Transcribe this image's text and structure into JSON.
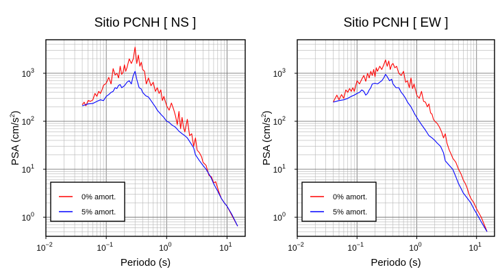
{
  "chart_data": [
    {
      "type": "line",
      "title": "Sitio PCNH [ NS ]",
      "xlabel": "Periodo (s)",
      "ylabel": "PSA (cm/s",
      "ylabel_exponent": "2",
      "ylabel_close": ")",
      "xscale": "log",
      "yscale": "log",
      "xlim": [
        0.01,
        20
      ],
      "ylim": [
        0.4,
        5000
      ],
      "x_ticks": [
        {
          "base": "10",
          "exp": "−2"
        },
        {
          "base": "10",
          "exp": "−1"
        },
        {
          "base": "10",
          "exp": "0"
        },
        {
          "base": "10",
          "exp": "1"
        }
      ],
      "y_ticks": [
        {
          "base": "10",
          "exp": "0"
        },
        {
          "base": "10",
          "exp": "1"
        },
        {
          "base": "10",
          "exp": "2"
        },
        {
          "base": "10",
          "exp": "3"
        }
      ],
      "grid": true,
      "legend_position": "bottom-left",
      "series": [
        {
          "name": "0% amort.",
          "color": "#ff0000",
          "x": [
            0.04,
            0.043,
            0.046,
            0.05,
            0.055,
            0.06,
            0.065,
            0.07,
            0.075,
            0.08,
            0.085,
            0.09,
            0.1,
            0.11,
            0.12,
            0.13,
            0.14,
            0.15,
            0.16,
            0.17,
            0.18,
            0.19,
            0.2,
            0.21,
            0.22,
            0.24,
            0.26,
            0.28,
            0.3,
            0.32,
            0.34,
            0.36,
            0.38,
            0.4,
            0.43,
            0.46,
            0.5,
            0.55,
            0.6,
            0.65,
            0.7,
            0.75,
            0.8,
            0.85,
            0.9,
            1.0,
            1.1,
            1.2,
            1.3,
            1.4,
            1.5,
            1.6,
            1.7,
            1.8,
            1.9,
            2.0,
            2.2,
            2.4,
            2.6,
            2.8,
            3.0,
            3.2,
            3.5,
            3.8,
            4.0,
            4.5,
            5.0,
            5.5,
            6.0,
            6.5,
            7.0,
            7.5,
            8.0,
            9.0,
            10.0,
            12.0,
            15.0
          ],
          "y": [
            220,
            250,
            210,
            270,
            260,
            280,
            380,
            330,
            420,
            380,
            450,
            560,
            620,
            820,
            600,
            1250,
            920,
            1000,
            800,
            1400,
            950,
            1050,
            1500,
            1100,
            1300,
            2000,
            1600,
            2000,
            3500,
            1600,
            2400,
            1400,
            1700,
            1200,
            1100,
            600,
            800,
            550,
            650,
            420,
            500,
            380,
            450,
            270,
            330,
            210,
            170,
            240,
            180,
            130,
            85,
            160,
            70,
            120,
            75,
            60,
            110,
            50,
            55,
            30,
            45,
            25,
            22,
            18,
            14,
            12,
            7.5,
            7,
            5.2,
            5.5,
            4,
            3.1,
            2.5,
            2,
            1.7,
            1.1,
            0.65
          ]
        },
        {
          "name": "5% amort.",
          "color": "#0000ff",
          "x": [
            0.04,
            0.045,
            0.05,
            0.06,
            0.07,
            0.08,
            0.09,
            0.1,
            0.11,
            0.12,
            0.13,
            0.14,
            0.15,
            0.16,
            0.17,
            0.18,
            0.2,
            0.22,
            0.24,
            0.26,
            0.28,
            0.3,
            0.32,
            0.35,
            0.38,
            0.4,
            0.45,
            0.5,
            0.55,
            0.6,
            0.65,
            0.7,
            0.8,
            0.9,
            1.0,
            1.1,
            1.2,
            1.4,
            1.6,
            1.8,
            2.0,
            2.2,
            2.5,
            2.8,
            3.0,
            3.5,
            4.0,
            4.5,
            5.0,
            5.5,
            6.0,
            7.0,
            8.0,
            9.0,
            10.0,
            12.0,
            15.0
          ],
          "y": [
            210,
            220,
            230,
            235,
            260,
            280,
            270,
            330,
            360,
            400,
            420,
            500,
            480,
            560,
            580,
            500,
            550,
            650,
            700,
            600,
            900,
            1100,
            750,
            500,
            470,
            400,
            340,
            320,
            270,
            230,
            200,
            170,
            140,
            120,
            100,
            95,
            85,
            75,
            62,
            55,
            50,
            45,
            35,
            28,
            20,
            15,
            12,
            10,
            8,
            6.5,
            5,
            3.5,
            2.5,
            2,
            1.7,
            1.15,
            0.65
          ]
        }
      ]
    },
    {
      "type": "line",
      "title": "Sitio PCNH [ EW ]",
      "xlabel": "Periodo (s)",
      "ylabel": "PSA (cm/s",
      "ylabel_exponent": "2",
      "ylabel_close": ")",
      "xscale": "log",
      "yscale": "log",
      "xlim": [
        0.01,
        20
      ],
      "ylim": [
        0.4,
        5000
      ],
      "x_ticks": [
        {
          "base": "10",
          "exp": "−2"
        },
        {
          "base": "10",
          "exp": "−1"
        },
        {
          "base": "10",
          "exp": "0"
        },
        {
          "base": "10",
          "exp": "1"
        }
      ],
      "y_ticks": [
        {
          "base": "10",
          "exp": "0"
        },
        {
          "base": "10",
          "exp": "1"
        },
        {
          "base": "10",
          "exp": "2"
        },
        {
          "base": "10",
          "exp": "3"
        }
      ],
      "grid": true,
      "legend_position": "bottom-left",
      "series": [
        {
          "name": "0% amort.",
          "color": "#ff0000",
          "x": [
            0.04,
            0.043,
            0.046,
            0.05,
            0.055,
            0.06,
            0.065,
            0.07,
            0.075,
            0.08,
            0.085,
            0.09,
            0.1,
            0.11,
            0.12,
            0.13,
            0.14,
            0.15,
            0.16,
            0.17,
            0.18,
            0.19,
            0.2,
            0.21,
            0.22,
            0.24,
            0.26,
            0.28,
            0.3,
            0.32,
            0.34,
            0.36,
            0.38,
            0.4,
            0.43,
            0.46,
            0.5,
            0.55,
            0.6,
            0.65,
            0.7,
            0.75,
            0.8,
            0.85,
            0.9,
            1.0,
            1.1,
            1.2,
            1.3,
            1.4,
            1.5,
            1.6,
            1.7,
            1.8,
            1.9,
            2.0,
            2.2,
            2.4,
            2.6,
            2.8,
            3.0,
            3.2,
            3.5,
            3.8,
            4.0,
            4.5,
            5.0,
            5.5,
            6.0,
            6.5,
            7.0,
            7.5,
            8.0,
            9.0,
            10.0,
            12.0,
            15.0
          ],
          "y": [
            250,
            300,
            350,
            280,
            360,
            300,
            450,
            400,
            480,
            420,
            500,
            420,
            700,
            600,
            750,
            900,
            680,
            1000,
            800,
            1100,
            900,
            1200,
            850,
            1300,
            1100,
            1400,
            1200,
            1500,
            1900,
            1400,
            1800,
            1200,
            1500,
            1600,
            1300,
            1400,
            1000,
            900,
            1100,
            650,
            700,
            500,
            800,
            480,
            600,
            350,
            300,
            420,
            260,
            250,
            200,
            230,
            150,
            140,
            110,
            100,
            90,
            75,
            60,
            45,
            55,
            35,
            25,
            20,
            17,
            14,
            10,
            8,
            6,
            5,
            4,
            3,
            2.5,
            2,
            1.5,
            1,
            0.5
          ]
        },
        {
          "name": "5% amort.",
          "color": "#0000ff",
          "x": [
            0.04,
            0.045,
            0.05,
            0.06,
            0.07,
            0.08,
            0.09,
            0.1,
            0.11,
            0.12,
            0.13,
            0.14,
            0.15,
            0.16,
            0.17,
            0.18,
            0.2,
            0.22,
            0.24,
            0.26,
            0.28,
            0.3,
            0.32,
            0.35,
            0.38,
            0.4,
            0.45,
            0.5,
            0.55,
            0.6,
            0.65,
            0.7,
            0.8,
            0.9,
            1.0,
            1.1,
            1.2,
            1.4,
            1.6,
            1.8,
            2.0,
            2.2,
            2.5,
            2.8,
            3.0,
            3.5,
            4.0,
            4.5,
            5.0,
            5.5,
            6.0,
            7.0,
            8.0,
            9.0,
            10.0,
            12.0,
            15.0
          ],
          "y": [
            250,
            260,
            270,
            280,
            300,
            330,
            350,
            380,
            400,
            450,
            420,
            350,
            380,
            450,
            500,
            600,
            620,
            600,
            650,
            700,
            800,
            950,
            850,
            700,
            750,
            600,
            500,
            500,
            400,
            350,
            300,
            250,
            200,
            150,
            120,
            100,
            85,
            65,
            50,
            45,
            40,
            35,
            30,
            22,
            15,
            12,
            10,
            7,
            5,
            4,
            3.2,
            2.5,
            2,
            1.5,
            1.2,
            0.8,
            0.5
          ]
        }
      ]
    }
  ]
}
